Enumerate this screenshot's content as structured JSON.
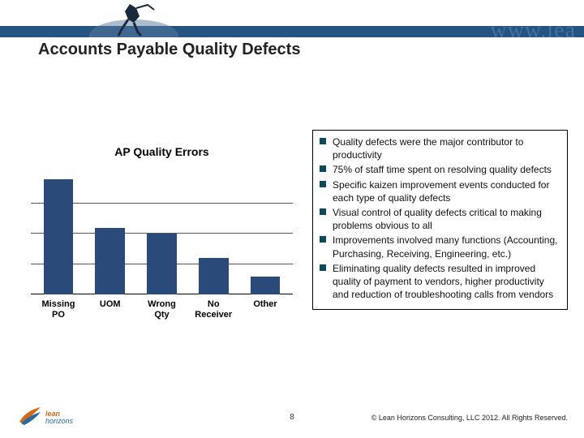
{
  "header": {
    "band_color": "#1a4b7a",
    "faint_url_text": "www.lea"
  },
  "title": "Accounts Payable Quality Defects",
  "chart": {
    "type": "bar",
    "title": "AP Quality Errors",
    "ymax": 100,
    "gridlines_at": [
      25,
      50,
      75
    ],
    "bar_color": "#2a4a7a",
    "grid_color": "#555555",
    "categories": [
      "Missing PO",
      "UOM",
      "Wrong Qty",
      "No Receiver",
      "Other"
    ],
    "values": [
      95,
      55,
      50,
      30,
      15
    ],
    "label_fontsize": 11,
    "title_fontsize": 14
  },
  "bullets": [
    "Quality defects were the major contributor to productivity",
    "75% of staff time spent on resolving quality defects",
    "Specific kaizen improvement events conducted for each type of quality defects",
    "Visual control of quality defects critical to making problems obvious to all",
    "Improvements involved many functions (Accounting, Purchasing, Receiving, Engineering, etc.)",
    "Eliminating quality defects resulted in improved quality of payment to vendors, higher productivity and reduction of troubleshooting calls from vendors"
  ],
  "footer": {
    "page_number": "8",
    "copyright": "© Lean Horizons Consulting, LLC 2012. All Rights Reserved.",
    "logo_line1": "lean",
    "logo_line2": "horizons"
  },
  "colors": {
    "bullet_marker": "#0a4a5a",
    "logo_orange": "#d06a1a",
    "logo_blue": "#2a6aa0",
    "background": "#ffffff"
  }
}
